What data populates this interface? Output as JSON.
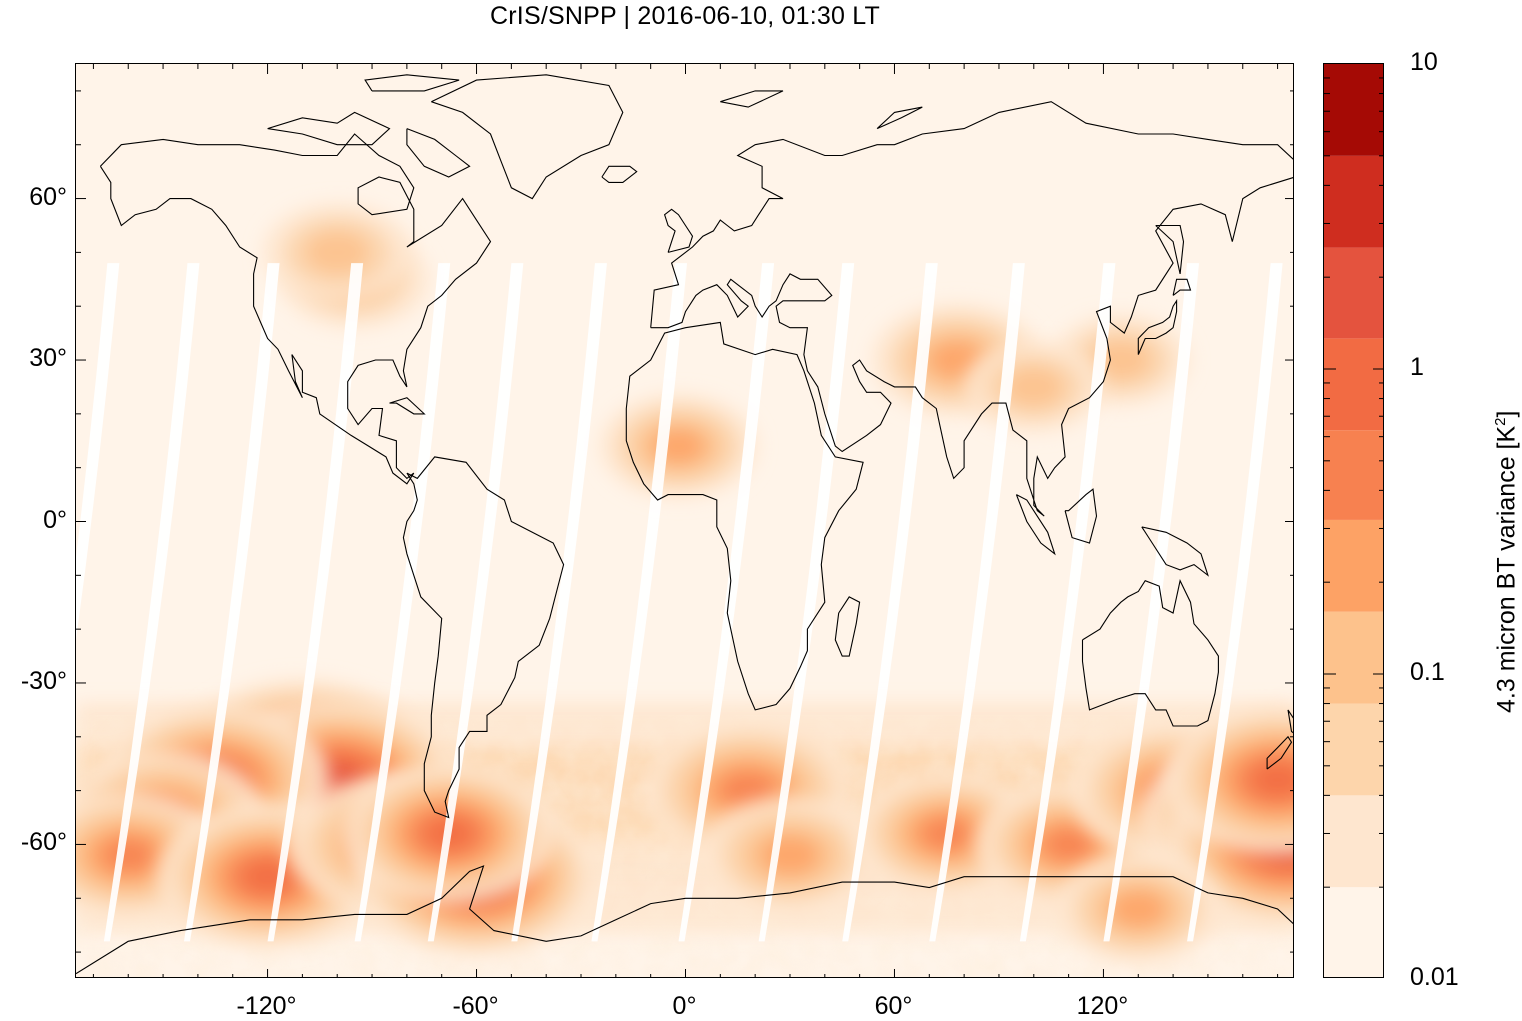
{
  "title": "CrIS/SNPP | 2016-06-10, 01:30 LT",
  "map": {
    "projection": "equirectangular",
    "lon_range": [
      -175,
      175
    ],
    "lat_range": [
      -85,
      85
    ],
    "x_ticks": [
      {
        "value": -120,
        "label": "-120°"
      },
      {
        "value": -60,
        "label": "-60°"
      },
      {
        "value": 0,
        "label": "0°"
      },
      {
        "value": 60,
        "label": "60°"
      },
      {
        "value": 120,
        "label": "120°"
      }
    ],
    "y_ticks": [
      {
        "value": 60,
        "label": "60°"
      },
      {
        "value": 30,
        "label": "30°"
      },
      {
        "value": 0,
        "label": "0°"
      },
      {
        "value": -30,
        "label": "-30°"
      },
      {
        "value": -60,
        "label": "-60°"
      }
    ],
    "background_color": "#fff4e9",
    "coastline_color": "#000000"
  },
  "colorbar": {
    "title": "4.3 micron BT variance [K²]",
    "title_base": "4.3 micron BT variance [K",
    "title_sup": "2",
    "title_end": "]",
    "scale": "log",
    "range": [
      0.01,
      10
    ],
    "tick_labels": [
      {
        "value": 10,
        "label": "10"
      },
      {
        "value": 1,
        "label": "1"
      },
      {
        "value": 0.1,
        "label": "0.1"
      },
      {
        "value": 0.01,
        "label": "0.01"
      }
    ],
    "bands": [
      {
        "from": 0.01,
        "to": 0.02,
        "color": "#fff4e9"
      },
      {
        "from": 0.02,
        "to": 0.04,
        "color": "#fee6cf"
      },
      {
        "from": 0.04,
        "to": 0.08,
        "color": "#fdd5ab"
      },
      {
        "from": 0.08,
        "to": 0.16,
        "color": "#fdc28c"
      },
      {
        "from": 0.16,
        "to": 0.32,
        "color": "#fda265"
      },
      {
        "from": 0.32,
        "to": 0.63,
        "color": "#f78150"
      },
      {
        "from": 0.63,
        "to": 1.26,
        "color": "#f26b43"
      },
      {
        "from": 1.26,
        "to": 2.5,
        "color": "#e4533e"
      },
      {
        "from": 2.5,
        "to": 5.0,
        "color": "#cf2d1f"
      },
      {
        "from": 5.0,
        "to": 10,
        "color": "#a50a05"
      }
    ]
  },
  "hotspots": [
    {
      "lon": -130,
      "lat": -58,
      "level": 4.0
    },
    {
      "lon": -110,
      "lat": -45,
      "level": 3.0
    },
    {
      "lon": -100,
      "lat": -48,
      "level": 2.2
    },
    {
      "lon": -135,
      "lat": -48,
      "level": 1.5
    },
    {
      "lon": -150,
      "lat": -55,
      "level": 0.8
    },
    {
      "lon": -160,
      "lat": -62,
      "level": 0.6
    },
    {
      "lon": -120,
      "lat": -66,
      "level": 1.2
    },
    {
      "lon": -85,
      "lat": -60,
      "level": 0.8
    },
    {
      "lon": -60,
      "lat": -66,
      "level": 2.0
    },
    {
      "lon": -68,
      "lat": -58,
      "level": 1.0
    },
    {
      "lon": 18,
      "lat": -50,
      "level": 0.9
    },
    {
      "lon": 30,
      "lat": -62,
      "level": 0.4
    },
    {
      "lon": 75,
      "lat": -58,
      "level": 0.5
    },
    {
      "lon": 110,
      "lat": -60,
      "level": 0.5
    },
    {
      "lon": 140,
      "lat": -50,
      "level": 0.8
    },
    {
      "lon": 160,
      "lat": -55,
      "level": 0.9
    },
    {
      "lon": 173,
      "lat": -60,
      "level": 2.2
    },
    {
      "lon": 170,
      "lat": -48,
      "level": 1.4
    },
    {
      "lon": 130,
      "lat": -72,
      "level": 0.3
    },
    {
      "lon": 78,
      "lat": 30,
      "level": 0.35
    },
    {
      "lon": -95,
      "lat": 45,
      "level": 0.2
    },
    {
      "lon": -100,
      "lat": 50,
      "level": 0.2
    },
    {
      "lon": -2,
      "lat": 14,
      "level": 0.25
    },
    {
      "lon": 125,
      "lat": 30,
      "level": 0.15
    },
    {
      "lon": 100,
      "lat": 25,
      "level": 0.15
    }
  ],
  "legend_visible": false
}
